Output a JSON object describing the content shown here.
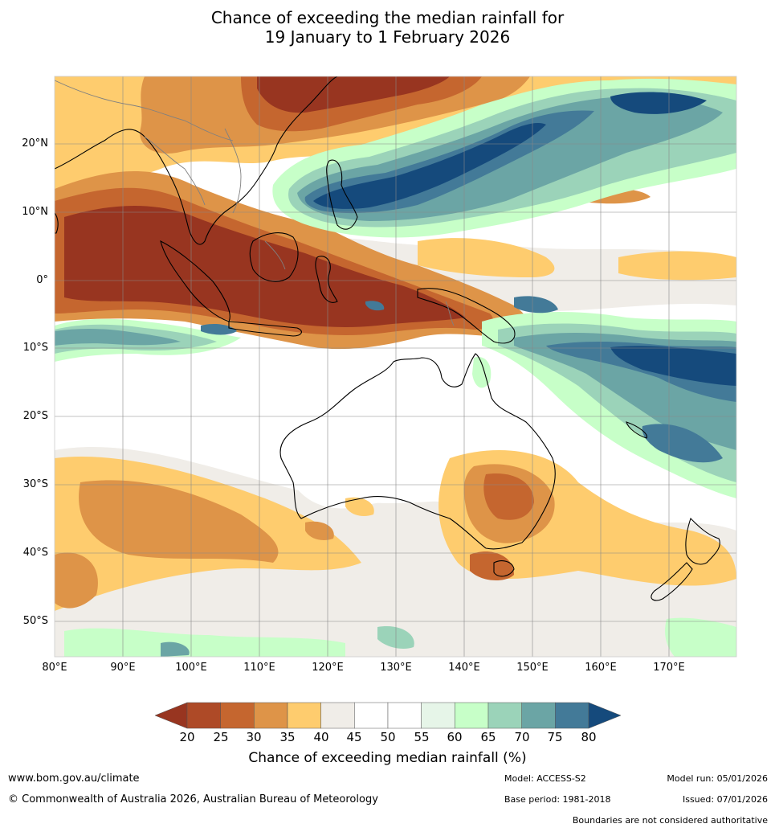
{
  "title_line1": "Chance of exceeding the median rainfall for",
  "title_line2": "19 January to 1 February 2026",
  "lat_labels": [
    "20°N",
    "10°N",
    "0°",
    "10°S",
    "20°S",
    "30°S",
    "40°S",
    "50°S"
  ],
  "lon_labels": [
    "80°E",
    "90°E",
    "100°E",
    "110°E",
    "120°E",
    "130°E",
    "140°E",
    "150°E",
    "160°E",
    "170°E"
  ],
  "colorbar": {
    "ticks": [
      "20",
      "25",
      "30",
      "35",
      "40",
      "45",
      "50",
      "55",
      "60",
      "65",
      "70",
      "75",
      "80"
    ],
    "colors": [
      "#983520",
      "#ae4a27",
      "#c5662f",
      "#de9448",
      "#fecc6e",
      "#f0ede8",
      "#ffffff",
      "#ffffff",
      "#e6f5e8",
      "#c7ffc8",
      "#9bd3b9",
      "#6ba5a5",
      "#437a98",
      "#154a7c"
    ],
    "label": "Chance of exceeding median rainfall (%)"
  },
  "footer": {
    "url": "www.bom.gov.au/climate",
    "copyright": "© Commonwealth of Australia 2026, Australian Bureau of Meteorology",
    "model": "Model: ACCESS-S2",
    "base_period": "Base period: 1981-2018",
    "model_run": "Model run: 05/01/2026",
    "issued": "Issued: 07/01/2026",
    "boundaries_note": "Boundaries are not considered authoritative"
  }
}
